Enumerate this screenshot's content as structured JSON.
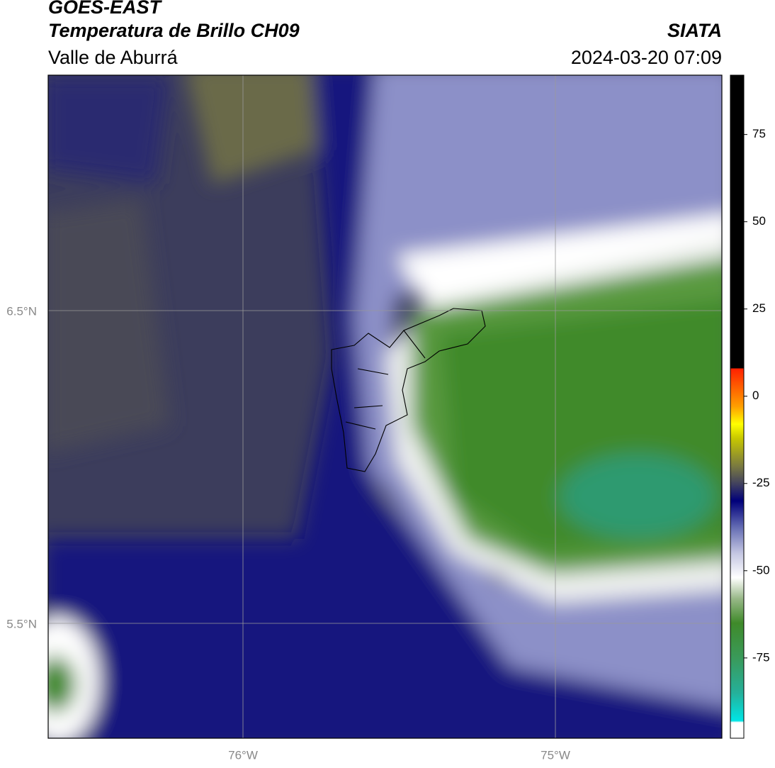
{
  "header": {
    "title": "GOES-EAST",
    "subtitle": "Temperatura de Brillo CH09",
    "region": "Valle de Aburrá",
    "source": "SIATA",
    "datetime": "2024-03-20 07:09"
  },
  "map": {
    "lat_labels": [
      "6.5°N",
      "5.5°N"
    ],
    "lon_labels": [
      "76°W",
      "75°W"
    ]
  },
  "colorbar": {
    "range": [
      -98,
      92
    ],
    "ticks": [
      75,
      50,
      25,
      0,
      -25,
      -50,
      -75
    ],
    "stops": [
      {
        "value": -98,
        "color": "#ffffff"
      },
      {
        "value": -93.5,
        "color": "#ffffff"
      },
      {
        "value": -93,
        "color": "#00e5e5"
      },
      {
        "value": -85,
        "color": "#25b09a"
      },
      {
        "value": -75,
        "color": "#3a9a5a"
      },
      {
        "value": -65,
        "color": "#3f8a2a"
      },
      {
        "value": -58,
        "color": "#98b888"
      },
      {
        "value": -52,
        "color": "#ffffff"
      },
      {
        "value": -45,
        "color": "#c4c6e2"
      },
      {
        "value": -38,
        "color": "#6a72b6"
      },
      {
        "value": -30,
        "color": "#00007a"
      },
      {
        "value": -25,
        "color": "#42425e"
      },
      {
        "value": -20,
        "color": "#7a7a40"
      },
      {
        "value": -12,
        "color": "#c8c800"
      },
      {
        "value": -8,
        "color": "#ffff00"
      },
      {
        "value": -3,
        "color": "#ffa000"
      },
      {
        "value": 8,
        "color": "#ff2000"
      },
      {
        "value": 8.01,
        "color": "#000000"
      },
      {
        "value": 92,
        "color": "#000000"
      }
    ]
  }
}
